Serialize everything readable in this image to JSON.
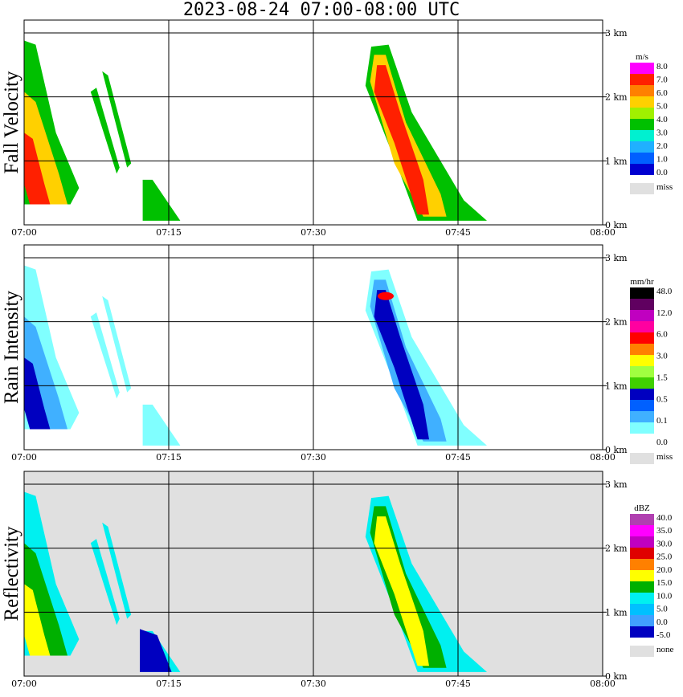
{
  "title": "2023-08-24   07:00-08:00 UTC",
  "chart_data": [
    {
      "type": "heatmap",
      "ylabel": "Fall Velocity",
      "unit": "m/s",
      "legend_labels": [
        "8.0",
        "7.0",
        "6.0",
        "5.0",
        "4.0",
        "3.0",
        "2.0",
        "1.0",
        "0.0",
        "miss"
      ],
      "legend_colors": [
        "#ff00ff",
        "#ff2000",
        "#ff8000",
        "#ffd000",
        "#a0f000",
        "#00c000",
        "#00f0d0",
        "#20b0ff",
        "#0060ff",
        "#0000d0",
        "#e0e0e0"
      ],
      "background": "#ffffff",
      "x_ticks": [
        "07:00",
        "07:15",
        "07:30",
        "07:45",
        "08:00"
      ],
      "y_ticks": [
        "0 km",
        "1 km",
        "2 km",
        "3 km"
      ],
      "ylim": [
        0,
        3.2
      ]
    },
    {
      "type": "heatmap",
      "ylabel": "Rain Intensity",
      "unit": "mm/hr",
      "legend_labels": [
        "48.0",
        "12.0",
        "6.0",
        "3.0",
        "1.5",
        "0.5",
        "0.1",
        "0.0",
        "miss"
      ],
      "legend_colors": [
        "#000000",
        "#600060",
        "#c000c0",
        "#ff00a0",
        "#ff0000",
        "#ff8000",
        "#ffff00",
        "#a0ff40",
        "#40d000",
        "#0000c0",
        "#0060ff",
        "#40b0ff",
        "#80ffff",
        "#ffffff",
        "#e0e0e0"
      ],
      "background": "#ffffff",
      "x_ticks": [
        "07:00",
        "07:15",
        "07:30",
        "07:45",
        "08:00"
      ],
      "y_ticks": [
        "0 km",
        "1 km",
        "2 km",
        "3 km"
      ],
      "ylim": [
        0,
        3.2
      ]
    },
    {
      "type": "heatmap",
      "ylabel": "Reflectivity",
      "unit": "dBZ",
      "legend_labels": [
        "40.0",
        "35.0",
        "30.0",
        "25.0",
        "20.0",
        "15.0",
        "10.0",
        "5.0",
        "0.0",
        "-5.0",
        "none"
      ],
      "legend_colors": [
        "#b040b0",
        "#ff00ff",
        "#c000c0",
        "#e00000",
        "#ff8000",
        "#ffff00",
        "#00b000",
        "#00f0f0",
        "#00c0ff",
        "#40a0ff",
        "#0000c0",
        "#e0e0e0"
      ],
      "background": "#e0e0e0",
      "x_ticks": [
        "07:00",
        "07:15",
        "07:30",
        "07:45",
        "08:00"
      ],
      "y_ticks": [
        "0 km",
        "1 km",
        "2 km",
        "3 km"
      ],
      "ylim": [
        0,
        3.2
      ]
    }
  ]
}
